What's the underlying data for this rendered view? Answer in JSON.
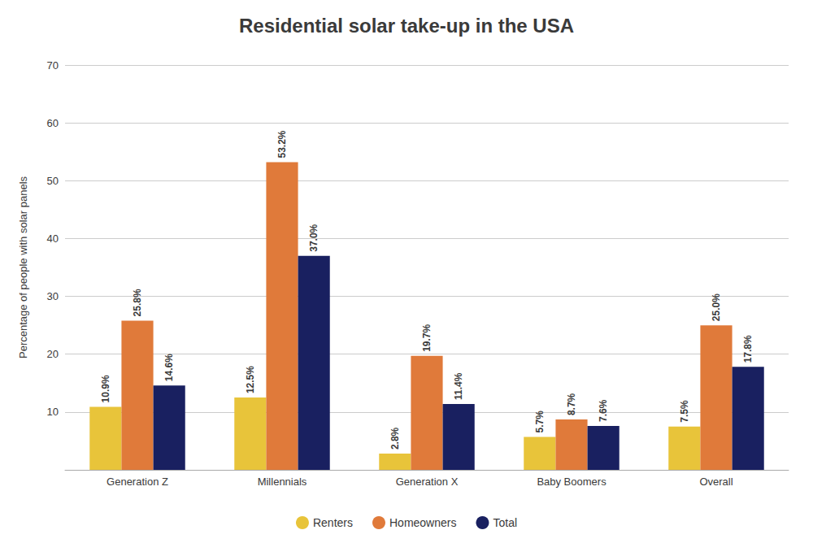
{
  "chart_data": {
    "type": "bar",
    "title": "Residential solar take-up in the USA",
    "y_label": "Percentage of people with solar panels",
    "categories": [
      "Generation Z",
      "Millennials",
      "Generation X",
      "Baby Boomers",
      "Overall"
    ],
    "series": [
      {
        "name": "Renters",
        "color": "#E8C43A",
        "values": [
          10.9,
          12.5,
          2.8,
          5.7,
          7.5
        ],
        "value_labels": [
          "10.9%",
          "12.5%",
          "2.8%",
          "5.7%",
          "7.5%"
        ]
      },
      {
        "name": "Homeowners",
        "color": "#E07A3A",
        "values": [
          25.8,
          53.2,
          19.7,
          8.7,
          25.0
        ],
        "value_labels": [
          "25.8%",
          "53.2%",
          "19.7%",
          "8.7%",
          "25.0%"
        ]
      },
      {
        "name": "Total",
        "color": "#192060",
        "values": [
          14.6,
          37.0,
          11.4,
          7.6,
          17.8
        ],
        "value_labels": [
          "14.6%",
          "37.0%",
          "11.4%",
          "7.6%",
          "17.8%"
        ]
      }
    ],
    "ylim": [
      0,
      70
    ],
    "yticks": [
      10,
      20,
      30,
      40,
      50,
      60,
      70
    ],
    "grid": true,
    "legend": "bottom",
    "data_labels": true
  }
}
